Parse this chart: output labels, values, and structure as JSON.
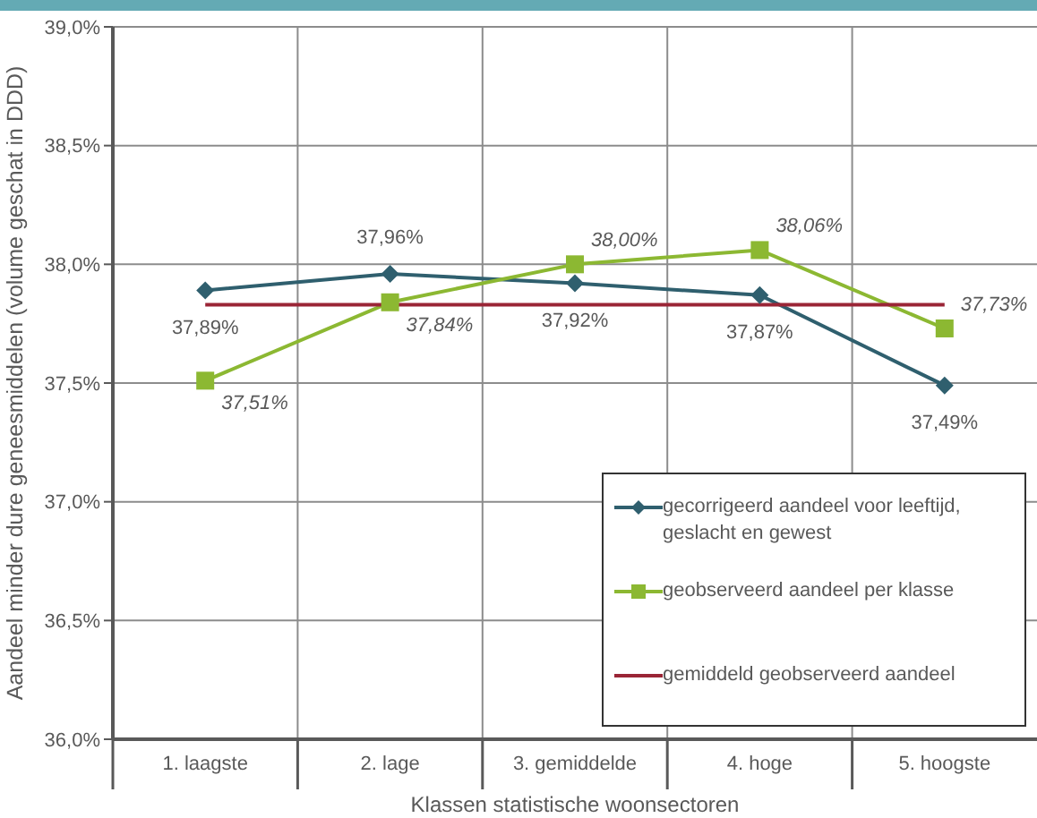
{
  "chart_data": {
    "type": "line",
    "xlabel": "Klassen statistische woonsectoren",
    "ylabel": "Aandeel minder dure geneesmiddelen (volume geschat in DDD)",
    "categories": [
      "1. laagste",
      "2. lage",
      "3. gemiddelde",
      "4. hoge",
      "5. hoogste"
    ],
    "series": [
      {
        "name": "gecorrigeerd aandeel voor leeftijd, geslacht en gewest",
        "color": "#2f5f6e",
        "marker": "diamond",
        "values": [
          37.89,
          37.96,
          37.92,
          37.87,
          37.49
        ],
        "value_labels": [
          "37,89%",
          "37,96%",
          "37,92%",
          "37,87%",
          "37,49%"
        ]
      },
      {
        "name": "geobserveerd aandeel per klasse",
        "color": "#8cb832",
        "marker": "square",
        "values": [
          37.51,
          37.84,
          38.0,
          38.06,
          37.73
        ],
        "value_labels": [
          "37,51%",
          "37,84%",
          "38,00%",
          "38,06%",
          "37,73%"
        ]
      },
      {
        "name": "gemiddeld geobserveerd aandeel",
        "color": "#9a2536",
        "marker": "none",
        "values": [
          37.83,
          37.83,
          37.83,
          37.83,
          37.83
        ]
      }
    ],
    "ylim": [
      36,
      39
    ],
    "yticks": [
      {
        "value": 36,
        "label": "36,0%"
      },
      {
        "value": 36.5,
        "label": "36,5%"
      },
      {
        "value": 37,
        "label": "37,0%"
      },
      {
        "value": 37.5,
        "label": "37,5%"
      },
      {
        "value": 38,
        "label": "38,0%"
      },
      {
        "value": 38.5,
        "label": "38,5%"
      },
      {
        "value": 39,
        "label": "39,0%"
      }
    ],
    "grid": true,
    "legend": "bottom right"
  }
}
